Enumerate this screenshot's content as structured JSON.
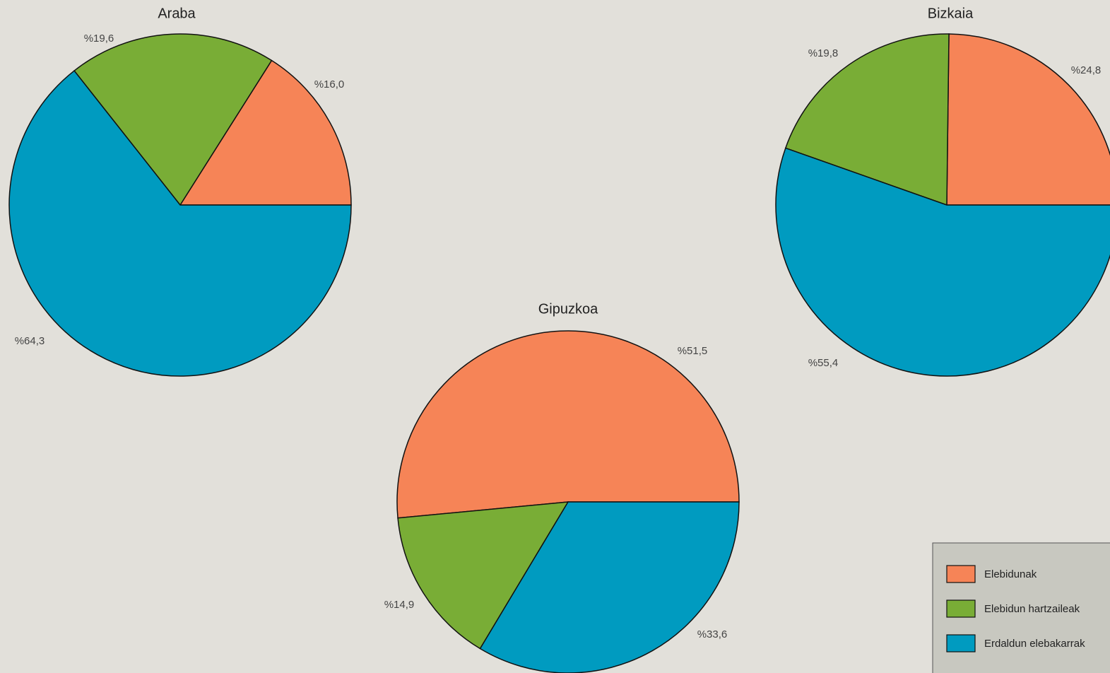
{
  "chart_data": [
    {
      "type": "pie",
      "title": "Araba",
      "categories": [
        "Elebidunak",
        "Elebidun hartzaileak",
        "Erdaldun elebakarrak"
      ],
      "colors": [
        "#f68457",
        "#79ad36",
        "#009bc0"
      ],
      "values": [
        16.0,
        19.6,
        64.3
      ],
      "value_labels": [
        "%16,0",
        "%19,6",
        "%64,3"
      ],
      "legend": "lower right"
    },
    {
      "type": "pie",
      "title": "Gipuzkoa",
      "categories": [
        "Elebidunak",
        "Elebidun hartzaileak",
        "Erdaldun elebakarrak"
      ],
      "colors": [
        "#f68457",
        "#79ad36",
        "#009bc0"
      ],
      "values": [
        51.5,
        14.9,
        33.6
      ],
      "value_labels": [
        "%51,5",
        "%14,9",
        "%33,6"
      ]
    },
    {
      "type": "pie",
      "title": "Bizkaia",
      "categories": [
        "Elebidunak",
        "Elebidun hartzaileak",
        "Erdaldun elebakarrak"
      ],
      "colors": [
        "#f68457",
        "#79ad36",
        "#009bc0"
      ],
      "values": [
        24.8,
        19.8,
        55.4
      ],
      "value_labels": [
        "%24,8",
        "%19,8",
        "%55,4"
      ]
    }
  ]
}
